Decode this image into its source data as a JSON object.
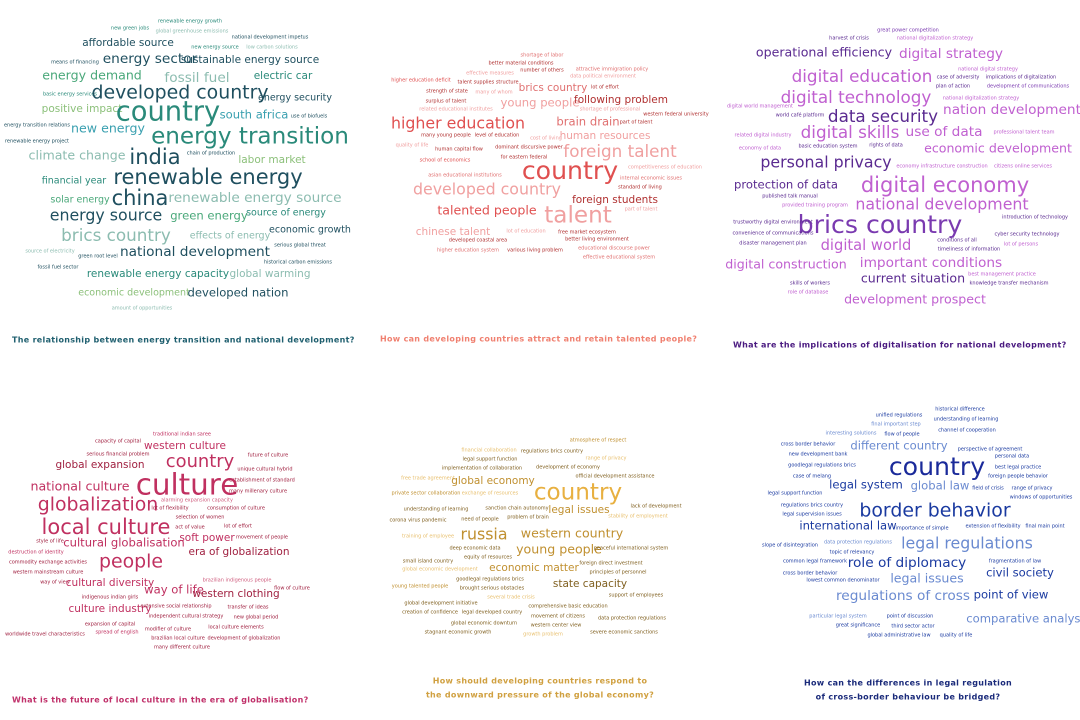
{
  "panels": [
    {
      "words": [
        "new green jobs",
        "renewable energy growth",
        "global greenhouse emissions",
        "national development impetus",
        "affordable source",
        "new energy source",
        "low carbon solutions",
        "means of financing",
        "energy sector",
        "sustainable energy source",
        "energy demand",
        "fossil fuel",
        "electric car",
        "basic energy services",
        "developed country",
        "energy security",
        "positive impact",
        "country",
        "south africa",
        "use of biofuels",
        "energy transition relations",
        "new energy",
        "energy transition",
        "renewable energy project",
        "climate change",
        "india",
        "chain of production",
        "labor market",
        "financial year",
        "renewable energy",
        "solar energy",
        "china",
        "renewable energy source",
        "energy source",
        "green energy",
        "source of energy",
        "brics country",
        "effects of energy",
        "economic growth",
        "serious global threat",
        "source of electricity",
        "green root level",
        "national development",
        "fossil fuel sector",
        "historical carbon emissions",
        "renewable energy capacity",
        "global warming",
        "economic development",
        "developed nation",
        "amount of opportunities"
      ],
      "caption": [
        "The relationship between energy transition and national development?"
      ]
    },
    {
      "words": [
        "shortage of labor",
        "better material conditions",
        "number of others",
        "attractive immigration policy",
        "effective measures",
        "data political environment",
        "higher education deficit",
        "talent supplies structure",
        "brics country",
        "lot of effort",
        "strength of state",
        "many of whom",
        "young people",
        "following problem",
        "surplus of talent",
        "shortage of professional",
        "related educational institutes",
        "western federal university",
        "higher education",
        "brain drain",
        "part of talent",
        "many young people",
        "level of education",
        "cost of living",
        "human resources",
        "quality of life",
        "human capital flow",
        "dominant discursive power",
        "foreign talent",
        "school of economics",
        "for eastern federal",
        "competitiveness of education",
        "country",
        "asian educational institutions",
        "internal economic issues",
        "developed country",
        "standard of living",
        "foreign students",
        "talented people",
        "talent",
        "part of talent",
        "chinese talent",
        "lot of education",
        "free market ecosystem",
        "developed coastal area",
        "better living environment",
        "higher education system",
        "various living problem",
        "educational discourse power",
        "effective educational system"
      ],
      "caption": [
        "How can developing countries attract and retain talented people?"
      ]
    },
    {
      "words": [
        "great power competition",
        "harvest of crisis",
        "national digitalization strategy",
        "operational efficiency",
        "digital strategy",
        "national digital strategy",
        "digital education",
        "case of adversity",
        "implications of digitalization",
        "plan of action",
        "development of communications",
        "digital technology",
        "national digitalization strategy",
        "digital world management",
        "data security",
        "nation development",
        "world café platform",
        "digital skills",
        "use of data",
        "professional talent team",
        "related digital industry",
        "basic education system",
        "rights of data",
        "economy of data",
        "economic development",
        "personal privacy",
        "economy infrastructure construction",
        "citizens online services",
        "protection of data",
        "digital economy",
        "published talk manual",
        "provided training program",
        "national development",
        "brics country",
        "trustworthy digital environment",
        "introduction of technology",
        "convenience of communications",
        "cyber security technology",
        "conditions of all",
        "disaster management plan",
        "lot of persons",
        "digital world",
        "timeliness of information",
        "digital construction",
        "important conditions",
        "current situation",
        "best management practice",
        "skills of workers",
        "knowledge transfer mechanism",
        "role of database",
        "development prospect"
      ],
      "caption": [
        "What are the implications of digitalisation for national development?"
      ]
    },
    {
      "words": [
        "traditional indian saree",
        "capacity of capital",
        "western culture",
        "serious financial problem",
        "future of culture",
        "global expansion",
        "country",
        "unique cultural hybrid",
        "establishment of standard",
        "national culture",
        "culture",
        "many millenary culture",
        "alarming expansion capacity",
        "globalization",
        "lot of flexibility",
        "consumption of culture",
        "selection of women",
        "local culture",
        "act of value",
        "lot of effort",
        "soft power",
        "movement of people",
        "style of life",
        "cultural globalisation",
        "era of globalization",
        "destruction of identity",
        "commodity exchange activities",
        "people",
        "western mainstream culture",
        "way of view",
        "cultural diversity",
        "brazilian indigenous people",
        "way of life",
        "western clothing",
        "flow of culture",
        "indigenous indian girls",
        "culture industry",
        "extensive social relationship",
        "transfer of ideas",
        "independent cultural strategy",
        "new global period",
        "expansion of capital",
        "local culture elements",
        "modifier of culture",
        "worldwide travel characteristics",
        "spread of english",
        "brazilian local culture",
        "development of globalization",
        "many different culture"
      ],
      "caption": [
        "What is the future of local culture in the era of globalisation?"
      ]
    },
    {
      "words": [
        "atmosphere of respect",
        "financial collaboration",
        "regulations brics country",
        "legal support function",
        "range of privacy",
        "implementation of collaboration",
        "development of economy",
        "free trade agreement",
        "official development assistance",
        "global economy",
        "country",
        "private sector collaboration",
        "exchange of resources",
        "lack of development",
        "legal issues",
        "stability of employment",
        "understanding of learning",
        "sanction chain autonomy",
        "corona virus pandemic",
        "need of people",
        "problem of brain",
        "russia",
        "western country",
        "training of employee",
        "deep economic data",
        "young people",
        "peaceful international system",
        "equity of resources",
        "small island country",
        "foreign direct investment",
        "global economic development",
        "economic matter",
        "principles of personnel",
        "goodlegal regulations brics",
        "young talented people",
        "state capacity",
        "brought serious obstacles",
        "support of employees",
        "several trade crisis",
        "global development initiative",
        "comprehensive basic education",
        "creation of confidence",
        "legal developed country",
        "movement of citizens",
        "data protection regulations",
        "global economic downturn",
        "western center view",
        "stagnant economic growth",
        "growth problem",
        "severe economic sanctions"
      ],
      "caption": [
        "How should developing countries respond to",
        "the downward pressure of the global economy?"
      ]
    },
    {
      "words": [
        "historical difference",
        "unified regulations",
        "understanding of learning",
        "final important step",
        "channel of cooperation",
        "interesting solutions",
        "flow of people",
        "cross border behavior",
        "different country",
        "perspective of agreement",
        "new development bank",
        "personal data",
        "goodlegal regulations brics",
        "country",
        "best legal practice",
        "case of melang",
        "foreign people behavior",
        "legal system",
        "global law",
        "field of crisis",
        "range of privacy",
        "legal support function",
        "windows of opportunities",
        "regulations brics country",
        "border behavior",
        "legal supervision issues",
        "international law",
        "importance of simple",
        "extension of flexibility",
        "final main point",
        "slope of disintegration",
        "data protection regulations",
        "legal regulations",
        "topic of relevancy",
        "common legal framework",
        "role of diplomacy",
        "fragmentation of law",
        "cross border behavior",
        "legal issues",
        "civil society",
        "lowest common denominator",
        "regulations of cross",
        "point of view",
        "particular legal system",
        "point of discussion",
        "comparative analysis",
        "great significance",
        "third sector actor",
        "global administrative law",
        "quality of life"
      ],
      "caption": [
        "How can the differences in legal regulation",
        "of cross-border behaviour be bridged?"
      ]
    }
  ]
}
